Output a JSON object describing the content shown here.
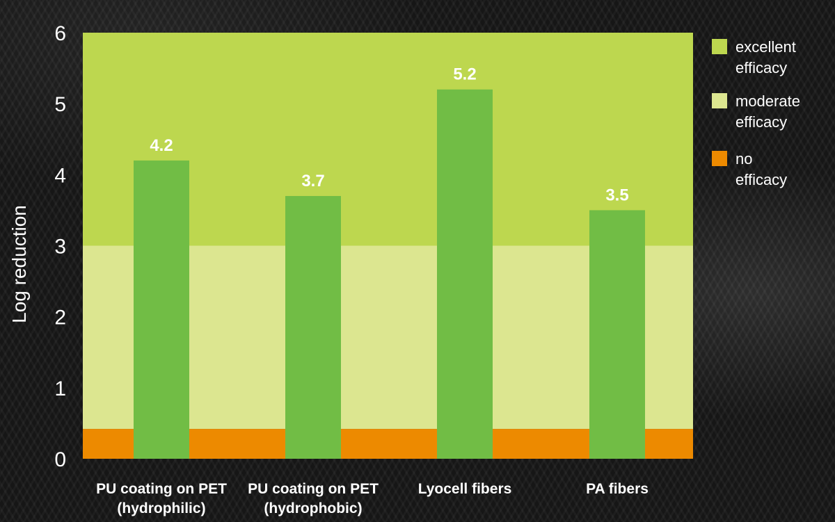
{
  "chart_data": {
    "type": "bar",
    "title": "",
    "xlabel": "",
    "ylabel": "Log reduction",
    "ylim": [
      0,
      6
    ],
    "yticks": [
      "0",
      "1",
      "2",
      "3",
      "4",
      "5",
      "6"
    ],
    "categories": [
      [
        "PU coating on PET",
        "(hydrophilic)"
      ],
      [
        "PU coating on PET",
        "(hydrophobic)"
      ],
      [
        "Lyocell fibers"
      ],
      [
        "PA fibers"
      ]
    ],
    "values": [
      4.2,
      3.7,
      5.2,
      3.5
    ],
    "value_labels": [
      "4.2",
      "3.7",
      "5.2",
      "3.5"
    ],
    "bar_color": "#71bd45",
    "bands": [
      {
        "name": "no efficacy",
        "from": 0,
        "to": 0.42,
        "color": "#ed8a00"
      },
      {
        "name": "moderate efficacy",
        "from": 0.42,
        "to": 3,
        "color": "#dce690"
      },
      {
        "name": "excellent efficacy",
        "from": 3,
        "to": 6,
        "color": "#bdd74f"
      }
    ],
    "legend": [
      {
        "label": [
          "excellent",
          "efficacy"
        ],
        "color": "#bdd74f"
      },
      {
        "label": [
          "moderate",
          "efficacy"
        ],
        "color": "#dce690"
      },
      {
        "label": [
          "no",
          "efficacy"
        ],
        "color": "#ed8a00"
      }
    ],
    "legend_position": "right",
    "grid": false
  }
}
